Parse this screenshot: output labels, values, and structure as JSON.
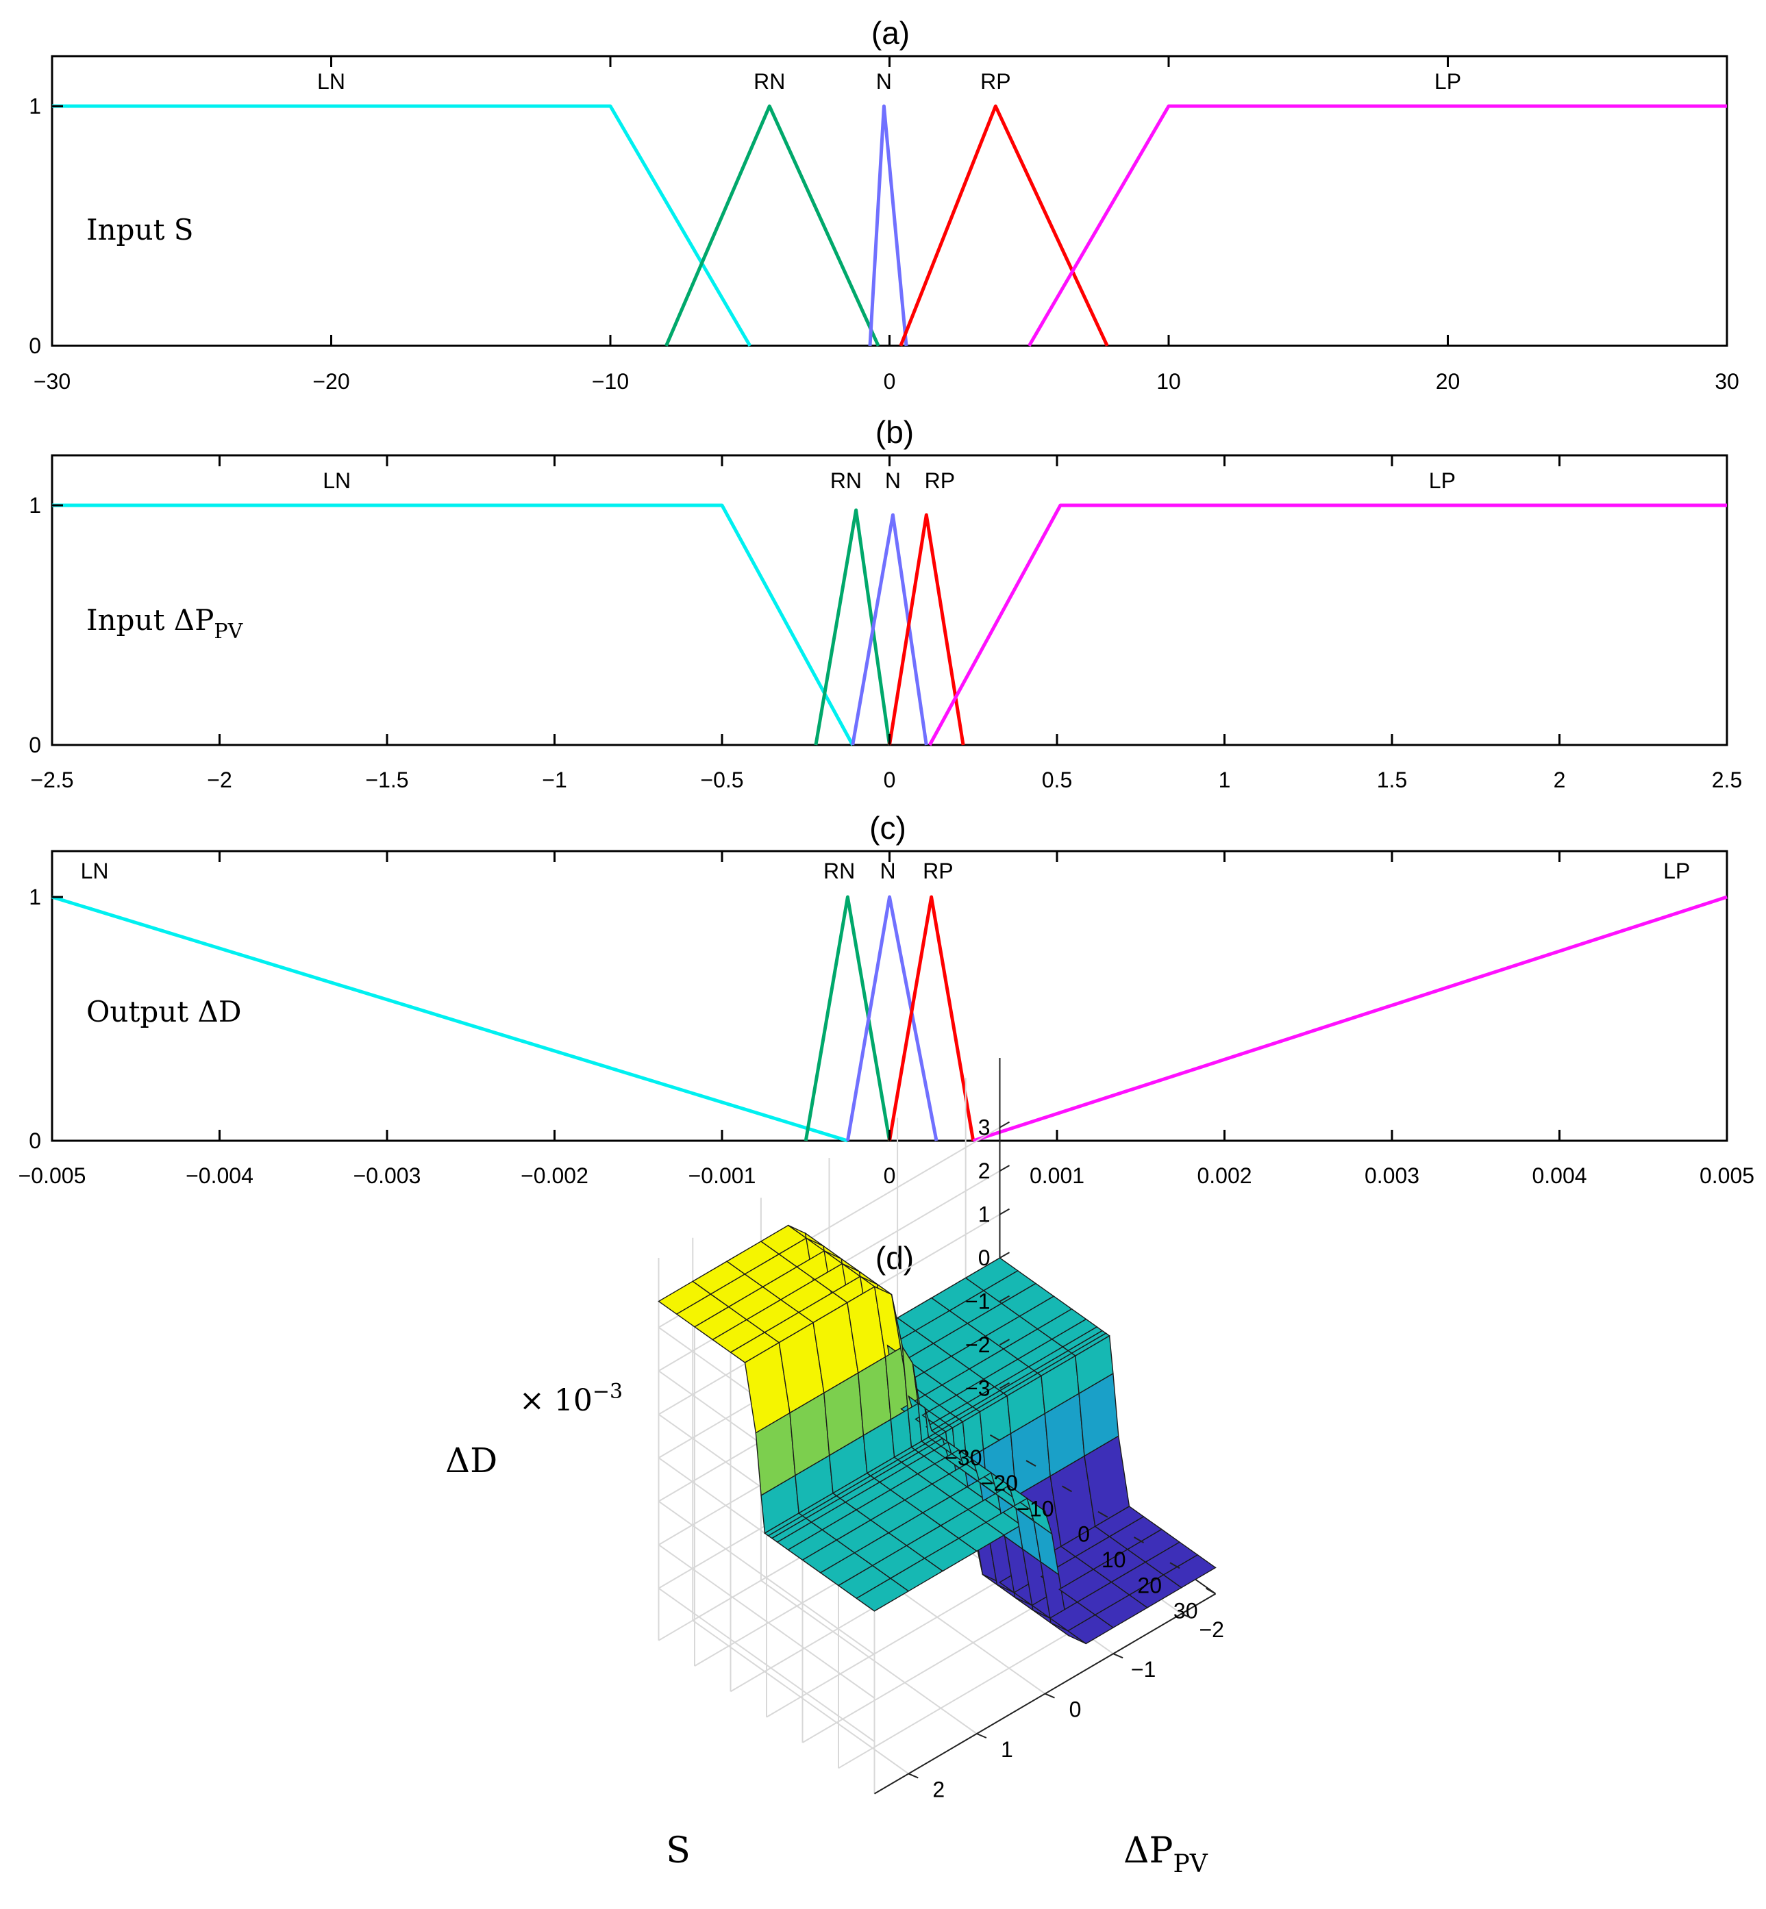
{
  "colors": {
    "LN": "#00f0f0",
    "RN": "#00a86b",
    "N": "#7070ff",
    "RP": "#ff0000",
    "LP": "#ff10ff",
    "surface_low": "#3d2fb8",
    "surface_mid": "#16b8b3",
    "surface_high": "#f5f500"
  },
  "chart_data": [
    {
      "type": "line",
      "panel_label": "(a)",
      "annotation": "Input S",
      "xlim": [
        -30,
        30
      ],
      "ylim": [
        0,
        1
      ],
      "xticks": [
        -30,
        -20,
        -10,
        0,
        10,
        20,
        30
      ],
      "xtick_labels": [
        "−30",
        "−20",
        "−10",
        "0",
        "10",
        "20",
        "30"
      ],
      "yticks": [
        0,
        1
      ],
      "ytick_labels": [
        "0",
        "1"
      ],
      "series": [
        {
          "name": "LN",
          "x": [
            -30,
            -10,
            -5
          ],
          "y": [
            1,
            1,
            0
          ]
        },
        {
          "name": "RN",
          "x": [
            -8,
            -4.3,
            -0.4
          ],
          "y": [
            0,
            1,
            0
          ]
        },
        {
          "name": "N",
          "x": [
            -0.7,
            -0.2,
            0.6
          ],
          "y": [
            0,
            1,
            0
          ]
        },
        {
          "name": "RP",
          "x": [
            0.4,
            3.8,
            7.8
          ],
          "y": [
            0,
            1,
            0
          ]
        },
        {
          "name": "LP",
          "x": [
            5,
            10,
            30
          ],
          "y": [
            0,
            1,
            1
          ]
        }
      ],
      "label_x": {
        "LN": -20,
        "RN": -4.3,
        "N": -0.2,
        "RP": 3.8,
        "LP": 20
      }
    },
    {
      "type": "line",
      "panel_label": "(b)",
      "annotation_main": "Input  ΔP",
      "annotation_sub": "PV",
      "xlim": [
        -2.5,
        2.5
      ],
      "ylim": [
        0,
        1
      ],
      "xticks": [
        -2.5,
        -2,
        -1.5,
        -1,
        -0.5,
        0,
        0.5,
        1,
        1.5,
        2,
        2.5
      ],
      "xtick_labels": [
        "−2.5",
        "−2",
        "−1.5",
        "−1",
        "−0.5",
        "0",
        "0.5",
        "1",
        "1.5",
        "2",
        "2.5"
      ],
      "yticks": [
        0,
        1
      ],
      "ytick_labels": [
        "0",
        "1"
      ],
      "series": [
        {
          "name": "LN",
          "x": [
            -2.5,
            -0.5,
            -0.11
          ],
          "y": [
            1,
            1,
            0
          ]
        },
        {
          "name": "RN",
          "x": [
            -0.22,
            -0.1,
            0
          ],
          "y": [
            0,
            0.98,
            0
          ]
        },
        {
          "name": "N",
          "x": [
            -0.11,
            0.01,
            0.11
          ],
          "y": [
            0,
            0.96,
            0
          ]
        },
        {
          "name": "RP",
          "x": [
            0,
            0.11,
            0.22
          ],
          "y": [
            0,
            0.96,
            0
          ]
        },
        {
          "name": "LP",
          "x": [
            0.12,
            0.51,
            2.5
          ],
          "y": [
            0,
            1,
            1
          ]
        }
      ],
      "label_x": {
        "LN": -1.65,
        "RN": -0.13,
        "N": 0.01,
        "RP": 0.15,
        "LP": 1.65
      }
    },
    {
      "type": "line",
      "panel_label": "(c)",
      "annotation": "Output ΔD",
      "xlim": [
        -0.005,
        0.005
      ],
      "ylim": [
        0,
        1
      ],
      "xticks": [
        -0.005,
        -0.004,
        -0.003,
        -0.002,
        -0.001,
        0,
        0.001,
        0.002,
        0.003,
        0.004,
        0.005
      ],
      "xtick_labels": [
        "−0.005",
        "−0.004",
        "−0.003",
        "−0.002",
        "−0.001",
        "0",
        "0.001",
        "0.002",
        "0.003",
        "0.004",
        "0.005"
      ],
      "yticks": [
        0,
        1
      ],
      "ytick_labels": [
        "0",
        "1"
      ],
      "series": [
        {
          "name": "LN",
          "x": [
            -0.005,
            -0.00025
          ],
          "y": [
            1,
            0
          ]
        },
        {
          "name": "RN",
          "x": [
            -0.0005,
            -0.00025,
            0
          ],
          "y": [
            0,
            1,
            0
          ]
        },
        {
          "name": "N",
          "x": [
            -0.00025,
            0,
            0.00028
          ],
          "y": [
            0,
            1,
            0
          ]
        },
        {
          "name": "RP",
          "x": [
            0,
            0.00025,
            0.0005
          ],
          "y": [
            0,
            1,
            0
          ]
        },
        {
          "name": "LP",
          "x": [
            0.0005,
            0.005
          ],
          "y": [
            0,
            1
          ]
        }
      ],
      "label_x": {
        "LN": -0.00483,
        "RN": -0.0003,
        "N": -1e-05,
        "RP": 0.00029,
        "LP": 0.00478
      }
    },
    {
      "type": "surface",
      "panel_label": "(d)",
      "xlabel": "S",
      "ylabel_main": "ΔP",
      "ylabel_sub": "PV",
      "zlabel": "ΔD",
      "z_multiplier": "× 10",
      "z_multiplier_exp": "−3",
      "xlim": [
        -30,
        30
      ],
      "ylim": [
        -2.5,
        2.5
      ],
      "zlim": [
        -3,
        3
      ],
      "xticks": [
        -30,
        -20,
        -10,
        0,
        10,
        20,
        30
      ],
      "xtick_labels": [
        "−30",
        "−20",
        "−10",
        "0",
        "10",
        "20",
        "30"
      ],
      "yticks": [
        -2,
        -1,
        0,
        1,
        2
      ],
      "ytick_labels": [
        "−2",
        "−1",
        "0",
        "1",
        "2"
      ],
      "zticks": [
        -3,
        -2,
        -1,
        0,
        1,
        2,
        3
      ],
      "ztick_labels": [
        "−3",
        "−2",
        "−1",
        "0",
        "1",
        "2",
        "3"
      ],
      "grid": true,
      "description_values": {
        "plateau_high": 3.6,
        "plateau_low": -3.6,
        "flat": 0
      }
    }
  ]
}
